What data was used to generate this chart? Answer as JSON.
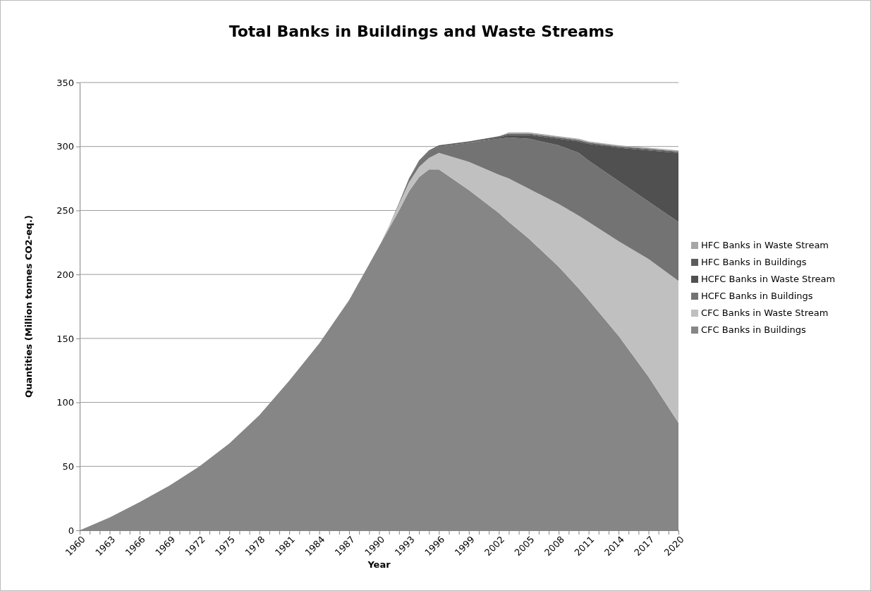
{
  "chart_data": {
    "type": "area",
    "stacked": true,
    "title": "Total Banks in Buildings and Waste Streams",
    "xlabel": "Year",
    "ylabel": "Quantities (Million tonnes CO2-eq.)",
    "x": [
      1960,
      1963,
      1966,
      1969,
      1972,
      1975,
      1978,
      1981,
      1984,
      1987,
      1990,
      1991,
      1992,
      1993,
      1994,
      1995,
      1996,
      1999,
      2002,
      2003,
      2005,
      2008,
      2010,
      2011,
      2014,
      2017,
      2020
    ],
    "series": [
      {
        "name": "CFC Banks in Buildings",
        "color": "#868686",
        "values": [
          0,
          10,
          22,
          35,
          50,
          68,
          90,
          117,
          146,
          180,
          222,
          236,
          250,
          265,
          276,
          282,
          282,
          266,
          248,
          241,
          228,
          206,
          189,
          180,
          152,
          120,
          84
        ]
      },
      {
        "name": "CFC Banks in Waste Stream",
        "color": "#c0c0c0",
        "values": [
          0,
          0,
          0,
          0,
          0,
          0,
          0,
          0,
          0,
          0,
          0,
          2,
          5,
          7,
          8,
          9,
          13,
          22,
          30,
          34,
          39,
          49,
          57,
          61,
          74,
          92,
          111
        ]
      },
      {
        "name": "HCFC Banks in Buildings",
        "color": "#737373",
        "values": [
          0,
          0,
          0,
          0,
          0,
          0,
          0,
          0,
          0,
          0,
          0,
          0,
          1,
          3,
          4,
          5,
          5,
          15,
          28,
          32,
          39,
          46,
          49,
          48,
          47,
          45,
          46
        ]
      },
      {
        "name": "HCFC Banks in Waste Stream",
        "color": "#505050",
        "values": [
          0,
          0,
          0,
          0,
          0,
          0,
          0,
          0,
          0,
          0,
          0,
          0,
          0,
          0,
          0,
          0,
          0,
          0,
          1,
          2,
          3,
          5,
          9,
          13,
          26,
          40,
          54
        ]
      },
      {
        "name": "HFC Banks in Buildings",
        "color": "#5c5c5c",
        "values": [
          0,
          0,
          0,
          0,
          0,
          0,
          0,
          0,
          0,
          0,
          0,
          0,
          0,
          0,
          1,
          1,
          1,
          1,
          1,
          1,
          1,
          1,
          1,
          1,
          1,
          1,
          1
        ]
      },
      {
        "name": "HFC Banks in Waste Stream",
        "color": "#a6a6a6",
        "values": [
          0,
          0,
          0,
          0,
          0,
          0,
          0,
          0,
          0,
          0,
          0,
          0,
          0,
          0,
          0,
          0,
          0,
          0,
          0,
          1,
          1,
          1,
          1,
          1,
          1,
          1,
          1
        ]
      }
    ],
    "xlim": [
      1960,
      2020
    ],
    "xticks": [
      1960,
      {
        "value": 1961,
        "label": null
      },
      {
        "value": 1962,
        "label": null
      },
      1963,
      {
        "value": 1964,
        "label": null
      },
      {
        "value": 1965,
        "label": null
      },
      1966,
      {
        "value": 1967,
        "label": null
      },
      {
        "value": 1968,
        "label": null
      },
      1969,
      {
        "value": 1970,
        "label": null
      },
      {
        "value": 1971,
        "label": null
      },
      1972,
      {
        "value": 1973,
        "label": null
      },
      {
        "value": 1974,
        "label": null
      },
      1975,
      {
        "value": 1976,
        "label": null
      },
      {
        "value": 1977,
        "label": null
      },
      1978,
      {
        "value": 1979,
        "label": null
      },
      {
        "value": 1980,
        "label": null
      },
      1981,
      {
        "value": 1982,
        "label": null
      },
      {
        "value": 1983,
        "label": null
      },
      1984,
      {
        "value": 1985,
        "label": null
      },
      {
        "value": 1986,
        "label": null
      },
      1987,
      {
        "value": 1988,
        "label": null
      },
      {
        "value": 1989,
        "label": null
      },
      1990,
      {
        "value": 1991,
        "label": null
      },
      {
        "value": 1992,
        "label": null
      },
      1993,
      {
        "value": 1994,
        "label": null
      },
      {
        "value": 1995,
        "label": null
      },
      1996,
      {
        "value": 1997,
        "label": null
      },
      {
        "value": 1998,
        "label": null
      },
      1999,
      {
        "value": 2000,
        "label": null
      },
      {
        "value": 2001,
        "label": null
      },
      2002,
      {
        "value": 2003,
        "label": null
      },
      {
        "value": 2004,
        "label": null
      },
      2005,
      {
        "value": 2006,
        "label": null
      },
      {
        "value": 2007,
        "label": null
      },
      2008,
      {
        "value": 2009,
        "label": null
      },
      {
        "value": 2010,
        "label": null
      },
      2011,
      {
        "value": 2012,
        "label": null
      },
      {
        "value": 2013,
        "label": null
      },
      2014,
      {
        "value": 2015,
        "label": null
      },
      {
        "value": 2016,
        "label": null
      },
      2017,
      {
        "value": 2018,
        "label": null
      },
      {
        "value": 2019,
        "label": null
      },
      2020
    ],
    "ylim": [
      0,
      350
    ],
    "yticks": [
      0,
      50,
      100,
      150,
      200,
      250,
      300,
      350
    ],
    "grid": "y",
    "legend": "right"
  }
}
